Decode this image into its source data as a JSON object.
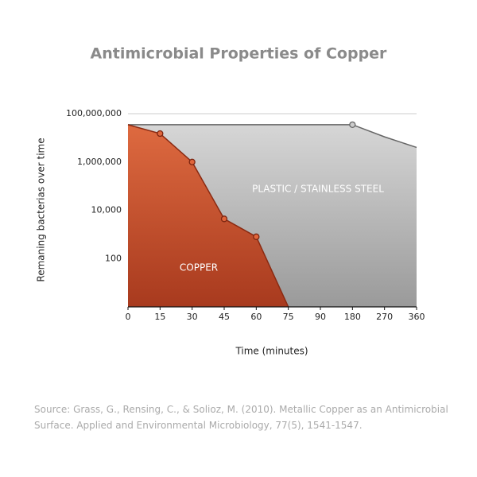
{
  "chart_data": {
    "type": "area",
    "title": "Antimicrobial Properties of Copper",
    "x_label": "Time (minutes)",
    "y_label": "Remaning bacterias over time",
    "source": "Source: Grass, G., Rensing, C., & Solioz, M. (2010). Metallic Copper as an Antimicrobial Surface. Applied and Environmental Microbiology, 77(5), 1541-1547.",
    "categories": [
      "0",
      "15",
      "30",
      "45",
      "60",
      "75",
      "90",
      "180",
      "270",
      "360"
    ],
    "log_scale": true,
    "ylim": [
      1,
      100000000
    ],
    "yticks": [
      {
        "value": 100000000,
        "label": "100,000,000"
      },
      {
        "value": 1000000,
        "label": "1,000,000"
      },
      {
        "value": 10000,
        "label": "10,000"
      },
      100
    ],
    "series": [
      {
        "name": "PLASTIC / STAINLESS STEEL",
        "color": "#b3b3b3",
        "values": [
          35000000,
          35000000,
          35000000,
          35000000,
          35000000,
          35000000,
          35000000,
          35000000,
          11000000,
          4000000
        ]
      },
      {
        "name": "COPPER",
        "color": "#c4502c",
        "values": [
          35000000,
          15000000,
          1000000,
          4400,
          800,
          1,
          null,
          null,
          null,
          null
        ]
      }
    ]
  }
}
